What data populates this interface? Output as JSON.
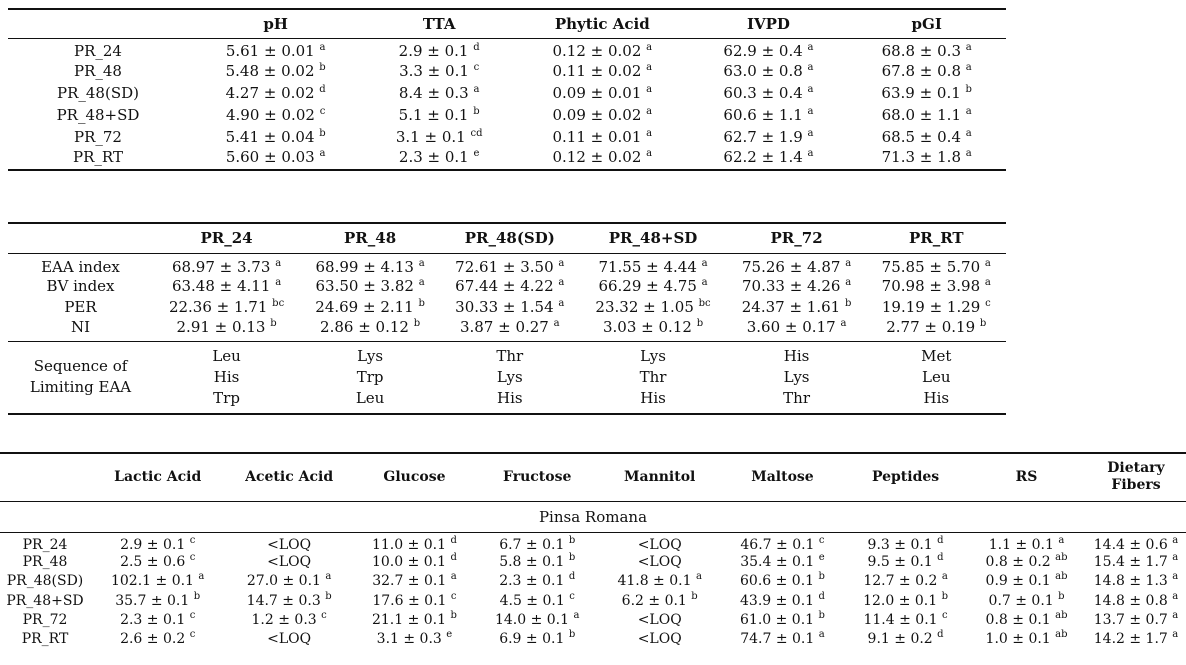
{
  "table1": {
    "headers": [
      "pH",
      "TTA",
      "Phytic Acid",
      "IVPD",
      "pGI"
    ],
    "rows": [
      {
        "label": "PR_24",
        "cells": [
          {
            "v": "5.61 ± 0.01",
            "s": "a"
          },
          {
            "v": "2.9 ± 0.1",
            "s": "d"
          },
          {
            "v": "0.12 ± 0.02",
            "s": "a"
          },
          {
            "v": "62.9 ± 0.4",
            "s": "a"
          },
          {
            "v": "68.8 ± 0.3",
            "s": "a"
          }
        ]
      },
      {
        "label": "PR_48",
        "cells": [
          {
            "v": "5.48 ± 0.02",
            "s": "b"
          },
          {
            "v": "3.3 ± 0.1",
            "s": "c"
          },
          {
            "v": "0.11 ± 0.02",
            "s": "a"
          },
          {
            "v": "63.0 ± 0.8",
            "s": "a"
          },
          {
            "v": "67.8 ± 0.8",
            "s": "a"
          }
        ]
      },
      {
        "label": "PR_48(SD)",
        "cells": [
          {
            "v": "4.27 ± 0.02",
            "s": "d"
          },
          {
            "v": "8.4 ± 0.3",
            "s": "a"
          },
          {
            "v": "0.09 ± 0.01",
            "s": "a"
          },
          {
            "v": "60.3 ± 0.4",
            "s": "a"
          },
          {
            "v": "63.9 ± 0.1",
            "s": "b"
          }
        ]
      },
      {
        "label": "PR_48+SD",
        "cells": [
          {
            "v": "4.90 ± 0.02",
            "s": "c"
          },
          {
            "v": "5.1 ± 0.1",
            "s": "b"
          },
          {
            "v": "0.09 ± 0.02",
            "s": "a"
          },
          {
            "v": "60.6 ± 1.1",
            "s": "a"
          },
          {
            "v": "68.0 ± 1.1",
            "s": "a"
          }
        ]
      },
      {
        "label": "PR_72",
        "cells": [
          {
            "v": "5.41 ± 0.04",
            "s": "b"
          },
          {
            "v": "3.1 ± 0.1",
            "s": "cd"
          },
          {
            "v": "0.11 ± 0.01",
            "s": "a"
          },
          {
            "v": "62.7 ± 1.9",
            "s": "a"
          },
          {
            "v": "68.5 ± 0.4",
            "s": "a"
          }
        ]
      },
      {
        "label": "PR_RT",
        "cells": [
          {
            "v": "5.60 ± 0.03",
            "s": "a"
          },
          {
            "v": "2.3 ± 0.1",
            "s": "e"
          },
          {
            "v": "0.12 ± 0.02",
            "s": "a"
          },
          {
            "v": "62.2 ± 1.4",
            "s": "a"
          },
          {
            "v": "71.3 ± 1.8",
            "s": "a"
          }
        ]
      }
    ]
  },
  "table2": {
    "headers": [
      "PR_24",
      "PR_48",
      "PR_48(SD)",
      "PR_48+SD",
      "PR_72",
      "PR_RT"
    ],
    "rows": [
      {
        "label": "EAA index",
        "cells": [
          {
            "v": "68.97 ± 3.73",
            "s": "a"
          },
          {
            "v": "68.99 ± 4.13",
            "s": "a"
          },
          {
            "v": "72.61 ± 3.50",
            "s": "a"
          },
          {
            "v": "71.55 ± 4.44",
            "s": "a"
          },
          {
            "v": "75.26 ± 4.87",
            "s": "a"
          },
          {
            "v": "75.85 ± 5.70",
            "s": "a"
          }
        ]
      },
      {
        "label": "BV index",
        "cells": [
          {
            "v": "63.48 ± 4.11",
            "s": "a"
          },
          {
            "v": "63.50 ± 3.82",
            "s": "a"
          },
          {
            "v": "67.44 ± 4.22",
            "s": "a"
          },
          {
            "v": "66.29 ± 4.75",
            "s": "a"
          },
          {
            "v": "70.33 ± 4.26",
            "s": "a"
          },
          {
            "v": "70.98 ± 3.98",
            "s": "a"
          }
        ]
      },
      {
        "label": "PER",
        "cells": [
          {
            "v": "22.36 ± 1.71",
            "s": "bc"
          },
          {
            "v": "24.69 ± 2.11",
            "s": "b"
          },
          {
            "v": "30.33 ± 1.54",
            "s": "a"
          },
          {
            "v": "23.32 ± 1.05",
            "s": "bc"
          },
          {
            "v": "24.37 ± 1.61",
            "s": "b"
          },
          {
            "v": "19.19 ± 1.29",
            "s": "c"
          }
        ]
      },
      {
        "label": "NI",
        "cells": [
          {
            "v": "2.91 ± 0.13",
            "s": "b"
          },
          {
            "v": "2.86 ± 0.12",
            "s": "b"
          },
          {
            "v": "3.87 ± 0.27",
            "s": "a"
          },
          {
            "v": "3.03 ± 0.12",
            "s": "b"
          },
          {
            "v": "3.60 ± 0.17",
            "s": "a"
          },
          {
            "v": "2.77 ± 0.19",
            "s": "b"
          }
        ]
      }
    ],
    "sequence_label_line1": "Sequence of",
    "sequence_label_line2": "Limiting EAA",
    "sequence": [
      [
        "Leu",
        "His",
        "Trp"
      ],
      [
        "Lys",
        "Trp",
        "Leu"
      ],
      [
        "Thr",
        "Lys",
        "His"
      ],
      [
        "Lys",
        "Thr",
        "His"
      ],
      [
        "His",
        "Lys",
        "Thr"
      ],
      [
        "Met",
        "Leu",
        "His"
      ]
    ]
  },
  "table3": {
    "headers": [
      "Lactic Acid",
      "Acetic Acid",
      "Glucose",
      "Fructose",
      "Mannitol",
      "Maltose",
      "Peptides",
      "RS",
      "Dietary Fibers"
    ],
    "section": "Pinsa Romana",
    "rows": [
      {
        "label": "PR_24",
        "cells": [
          {
            "v": "2.9 ± 0.1",
            "s": "c"
          },
          {
            "v": "<LOQ",
            "s": ""
          },
          {
            "v": "11.0 ± 0.1",
            "s": "d"
          },
          {
            "v": "6.7 ± 0.1",
            "s": "b"
          },
          {
            "v": "<LOQ",
            "s": ""
          },
          {
            "v": "46.7 ± 0.1",
            "s": "c"
          },
          {
            "v": "9.3 ± 0.1",
            "s": "d"
          },
          {
            "v": "1.1 ± 0.1",
            "s": "a"
          },
          {
            "v": "14.4 ± 0.6",
            "s": "a"
          }
        ]
      },
      {
        "label": "PR_48",
        "cells": [
          {
            "v": "2.5 ± 0.6",
            "s": "c"
          },
          {
            "v": "<LOQ",
            "s": ""
          },
          {
            "v": "10.0 ± 0.1",
            "s": "d"
          },
          {
            "v": "5.8 ± 0.1",
            "s": "b"
          },
          {
            "v": "<LOQ",
            "s": ""
          },
          {
            "v": "35.4 ± 0.1",
            "s": "e"
          },
          {
            "v": "9.5 ± 0.1",
            "s": "d"
          },
          {
            "v": "0.8 ± 0.2",
            "s": "ab"
          },
          {
            "v": "15.4 ± 1.7",
            "s": "a"
          }
        ]
      },
      {
        "label": "PR_48(SD)",
        "cells": [
          {
            "v": "102.1 ± 0.1",
            "s": "a"
          },
          {
            "v": "27.0 ± 0.1",
            "s": "a"
          },
          {
            "v": "32.7 ± 0.1",
            "s": "a"
          },
          {
            "v": "2.3 ± 0.1",
            "s": "d"
          },
          {
            "v": "41.8 ± 0.1",
            "s": "a"
          },
          {
            "v": "60.6 ± 0.1",
            "s": "b"
          },
          {
            "v": "12.7 ± 0.2",
            "s": "a"
          },
          {
            "v": "0.9 ± 0.1",
            "s": "ab"
          },
          {
            "v": "14.8 ± 1.3",
            "s": "a"
          }
        ]
      },
      {
        "label": "PR_48+SD",
        "cells": [
          {
            "v": "35.7 ± 0.1",
            "s": "b"
          },
          {
            "v": "14.7 ± 0.3",
            "s": "b"
          },
          {
            "v": "17.6 ± 0.1",
            "s": "c"
          },
          {
            "v": "4.5 ± 0.1",
            "s": "c"
          },
          {
            "v": "6.2 ± 0.1",
            "s": "b"
          },
          {
            "v": "43.9 ± 0.1",
            "s": "d"
          },
          {
            "v": "12.0 ± 0.1",
            "s": "b"
          },
          {
            "v": "0.7 ± 0.1",
            "s": "b"
          },
          {
            "v": "14.8 ± 0.8",
            "s": "a"
          }
        ]
      },
      {
        "label": "PR_72",
        "cells": [
          {
            "v": "2.3 ± 0.1",
            "s": "c"
          },
          {
            "v": "1.2 ± 0.3",
            "s": "c"
          },
          {
            "v": "21.1 ± 0.1",
            "s": "b"
          },
          {
            "v": "14.0 ± 0.1",
            "s": "a"
          },
          {
            "v": "<LOQ",
            "s": ""
          },
          {
            "v": "61.0 ± 0.1",
            "s": "b"
          },
          {
            "v": "11.4 ± 0.1",
            "s": "c"
          },
          {
            "v": "0.8 ± 0.1",
            "s": "ab"
          },
          {
            "v": "13.7 ± 0.7",
            "s": "a"
          }
        ]
      },
      {
        "label": "PR_RT",
        "cells": [
          {
            "v": "2.6 ± 0.2",
            "s": "c"
          },
          {
            "v": "<LOQ",
            "s": ""
          },
          {
            "v": "3.1 ± 0.3",
            "s": "e"
          },
          {
            "v": "6.9 ± 0.1",
            "s": "b"
          },
          {
            "v": "<LOQ",
            "s": ""
          },
          {
            "v": "74.7 ± 0.1",
            "s": "a"
          },
          {
            "v": "9.1 ± 0.2",
            "s": "d"
          },
          {
            "v": "1.0 ± 0.1",
            "s": "ab"
          },
          {
            "v": "14.2 ± 1.7",
            "s": "a"
          }
        ]
      }
    ]
  }
}
